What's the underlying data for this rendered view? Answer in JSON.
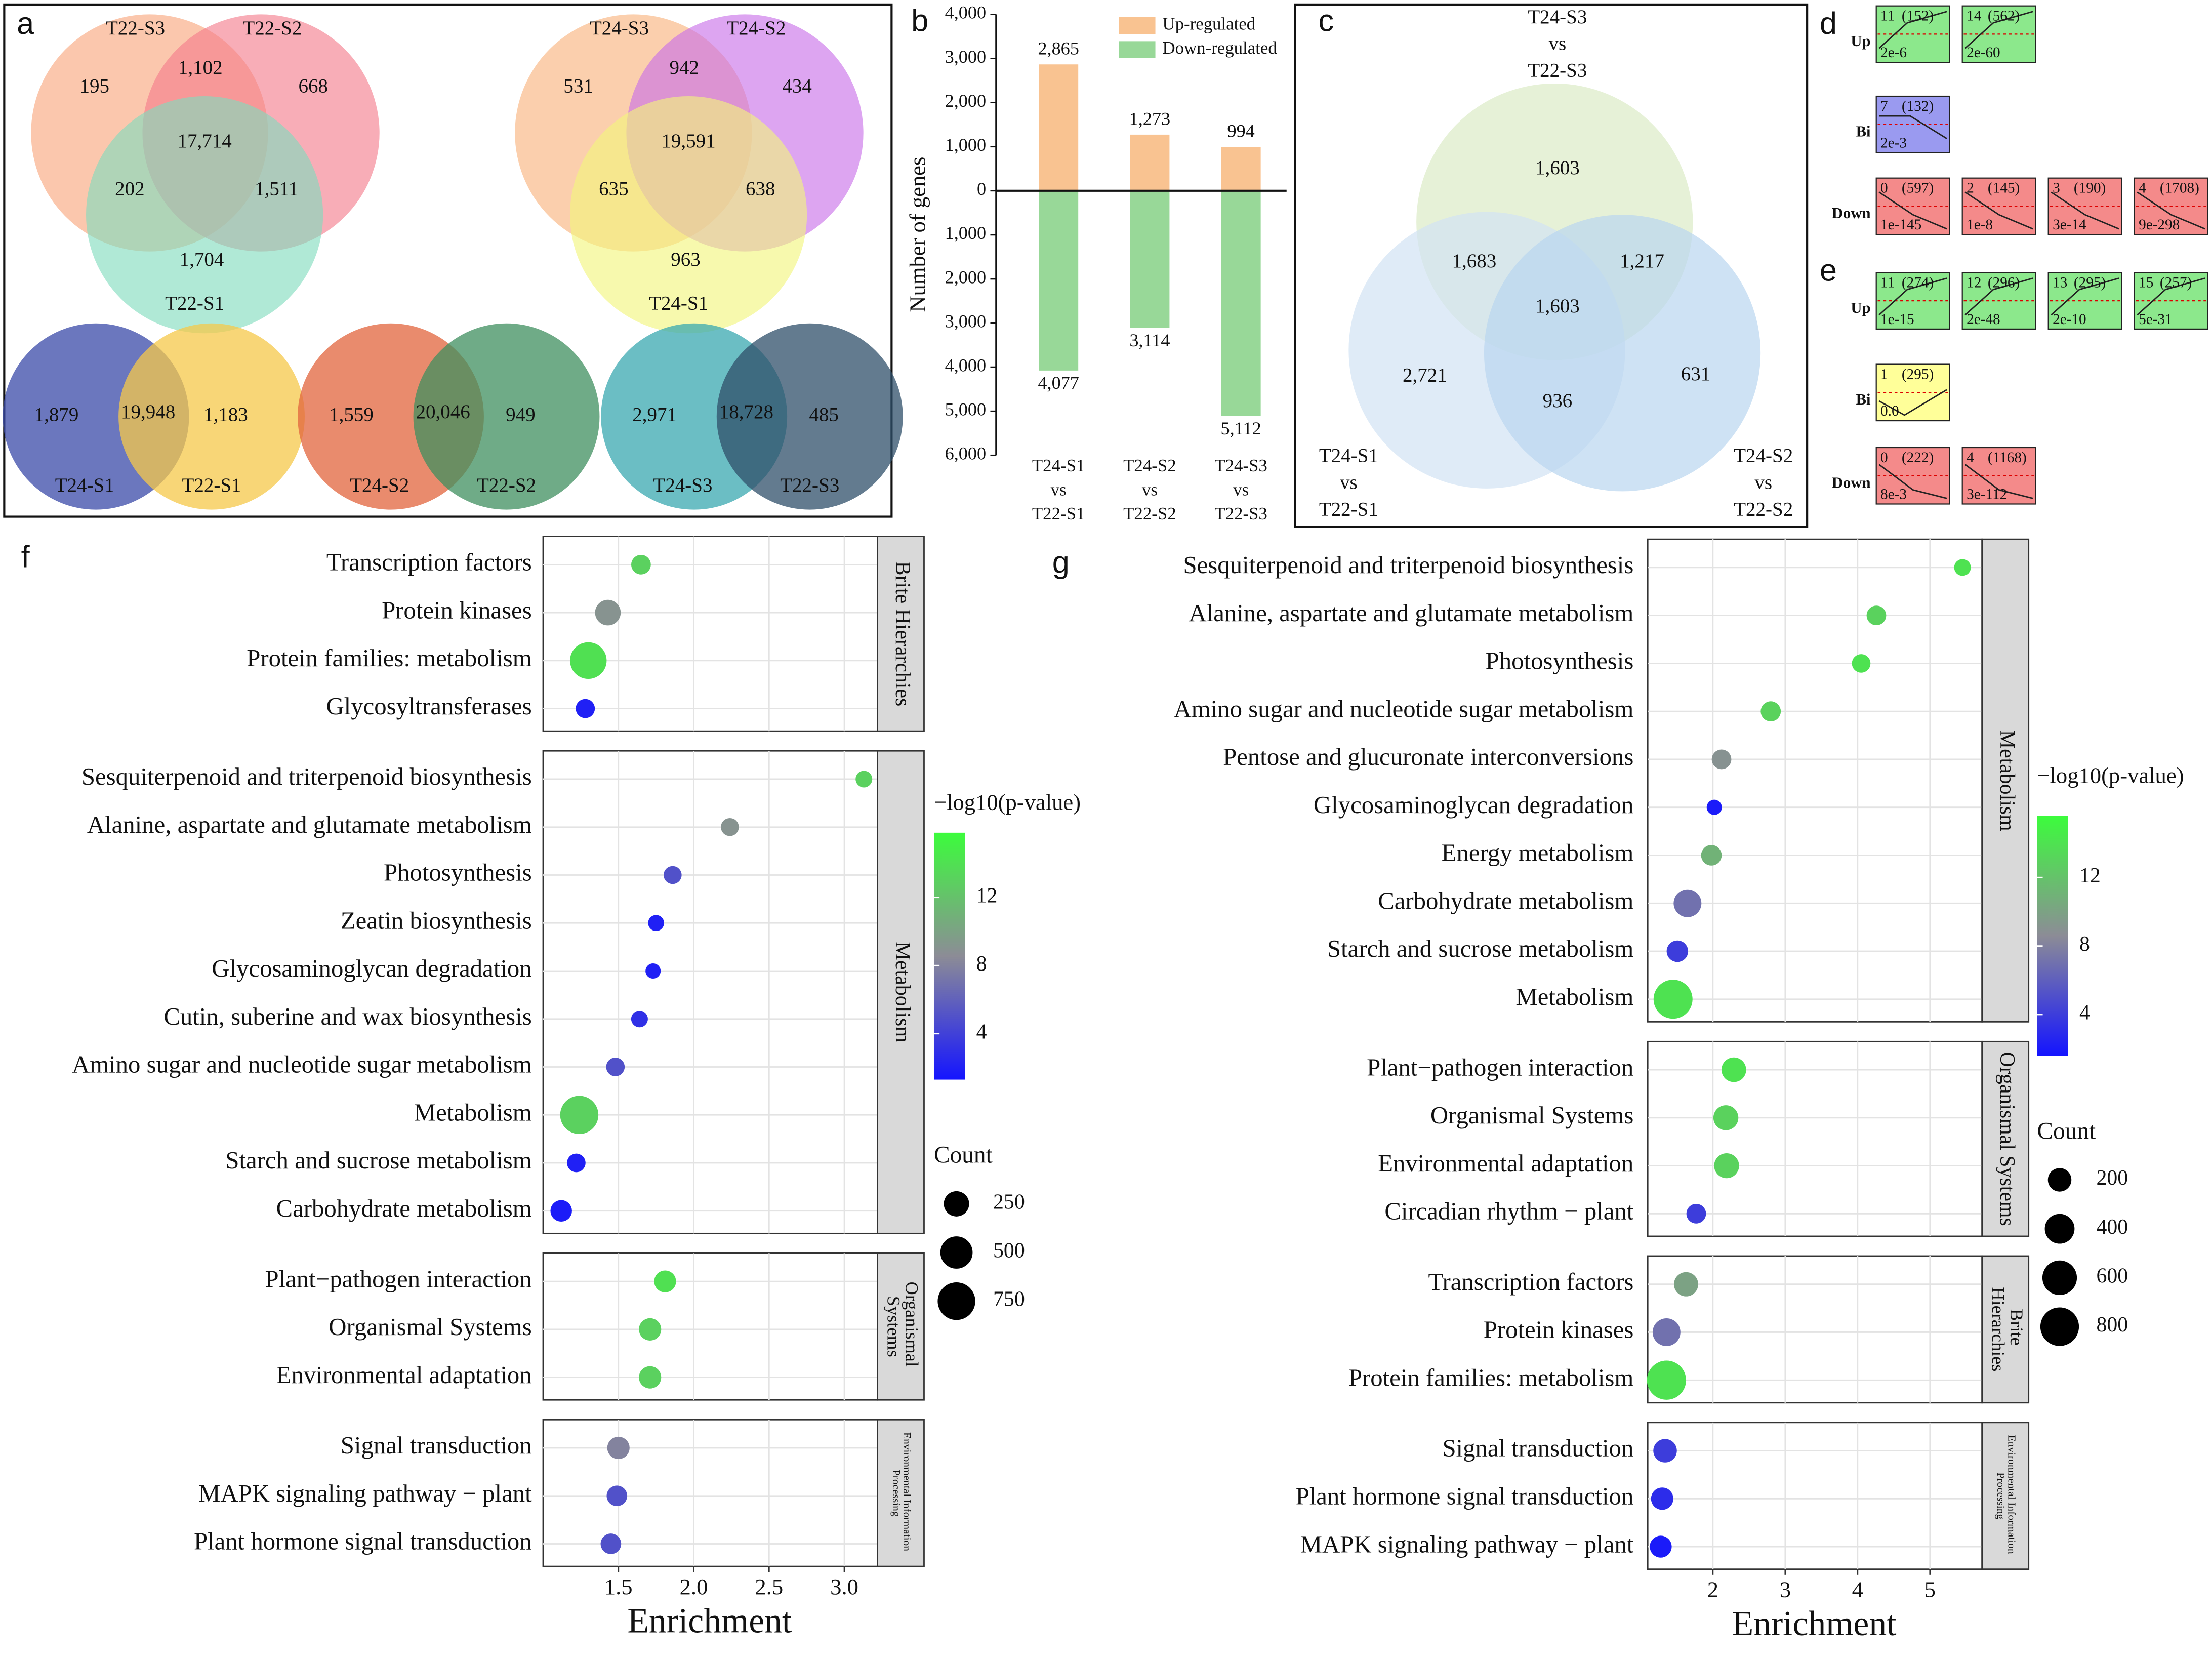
{
  "chart_data": [
    {
      "type": "venn",
      "panel": "a",
      "diagrams": [
        {
          "sets": [
            {
              "name": "T22-S3",
              "color": "#f8a57a"
            },
            {
              "name": "T22-S2",
              "color": "#f47a8a"
            },
            {
              "name": "T22-S1",
              "color": "#7fdcbd"
            }
          ],
          "values": [
            195,
            668,
            1704,
            1102,
            202,
            1511,
            17714
          ],
          "value_labels": [
            "195",
            "668",
            "1,704",
            "1,102",
            "202",
            "1,511",
            "17,714"
          ]
        },
        {
          "sets": [
            {
              "name": "T24-S3",
              "color": "#f9b27a"
            },
            {
              "name": "T24-S2",
              "color": "#c86ee8"
            },
            {
              "name": "T24-S1",
              "color": "#f2f57a"
            }
          ],
          "values": [
            531,
            434,
            963,
            942,
            635,
            638,
            19591
          ],
          "value_labels": [
            "531",
            "434",
            "963",
            "942",
            "635",
            "638",
            "19,591"
          ]
        },
        {
          "sets": [
            {
              "name": "T24-S1",
              "color": "#3a4aa8"
            },
            {
              "name": "T22-S1",
              "color": "#f5c84a"
            }
          ],
          "values": [
            1879,
            1183,
            19948
          ],
          "value_labels": [
            "1,879",
            "1,183",
            "19,948"
          ]
        },
        {
          "sets": [
            {
              "name": "T24-S2",
              "color": "#e2643c"
            },
            {
              "name": "T22-S2",
              "color": "#3f8f5f"
            }
          ],
          "values": [
            1559,
            949,
            20046
          ],
          "value_labels": [
            "1,559",
            "949",
            "20,046"
          ]
        },
        {
          "sets": [
            {
              "name": "T24-S3",
              "color": "#3aa8b0"
            },
            {
              "name": "T22-S3",
              "color": "#2f4f6a"
            }
          ],
          "values": [
            2971,
            485,
            18728
          ],
          "value_labels": [
            "2,971",
            "485",
            "18,728"
          ]
        }
      ]
    },
    {
      "type": "bar",
      "panel": "b",
      "y_label": "Number of genes",
      "categories": [
        "T24-S1\nvs\nT22-S1",
        "T24-S2\nvs\nT22-S2",
        "T24-S3\nvs\nT22-S3"
      ],
      "series": [
        {
          "name": "Up-regulated",
          "color": "#f9c391",
          "values": [
            2865,
            1273,
            994
          ],
          "value_labels": [
            "2,865",
            "1,273",
            "994"
          ]
        },
        {
          "name": "Down-regulated",
          "color": "#98d898",
          "values": [
            -4077,
            -3114,
            -5112
          ],
          "value_labels": [
            "4,077",
            "3,114",
            "5,112"
          ]
        }
      ],
      "ylim": [
        -6000,
        4000
      ],
      "yticks": [
        {
          "value": -6000,
          "label": "6,000"
        },
        {
          "value": -5000,
          "label": "5,000"
        },
        {
          "value": -4000,
          "label": "4,000"
        },
        {
          "value": -3000,
          "label": "3,000"
        },
        {
          "value": -2000,
          "label": "2,000"
        },
        {
          "value": -1000,
          "label": "1,000"
        },
        0,
        {
          "value": 1000,
          "label": "1,000"
        },
        {
          "value": 2000,
          "label": "2,000"
        },
        {
          "value": 3000,
          "label": "3,000"
        },
        {
          "value": 4000,
          "label": "4,000"
        }
      ]
    },
    {
      "type": "venn",
      "panel": "c",
      "diagrams": [
        {
          "sets": [
            {
              "name": "T24-S3\nvs\nT22-S3",
              "color": "#dcebc6"
            },
            {
              "name": "T24-S1\nvs\nT22-S1",
              "color": "#d2e2f3"
            },
            {
              "name": "T24-S2\nvs\nT22-S2",
              "color": "#b9d5f0"
            }
          ],
          "values": [
            1603,
            2721,
            631,
            1683,
            1217,
            936,
            1603
          ],
          "value_labels": [
            "1,603",
            "2,721",
            "631",
            "1,683",
            "1,217",
            "936",
            "1,603"
          ]
        }
      ]
    },
    {
      "type": "profiles",
      "panel": "d",
      "rows": [
        {
          "name": "Up",
          "color": "#8ce88c",
          "tiles": [
            {
              "id": "11",
              "size": "(152)",
              "p": "2e-6"
            },
            {
              "id": "14",
              "size": "(562)",
              "p": "2e-60"
            }
          ]
        },
        {
          "name": "Bi",
          "color": "#9a9af0",
          "tiles": [
            {
              "id": "7",
              "size": "(132)",
              "p": "2e-3"
            }
          ]
        },
        {
          "name": "Down",
          "color": "#f48a8a",
          "tiles": [
            {
              "id": "0",
              "size": "(597)",
              "p": "1e-145"
            },
            {
              "id": "2",
              "size": "(145)",
              "p": "1e-8"
            },
            {
              "id": "3",
              "size": "(190)",
              "p": "3e-14"
            },
            {
              "id": "4",
              "size": "(1708)",
              "p": "9e-298"
            }
          ]
        }
      ]
    },
    {
      "type": "profiles",
      "panel": "e",
      "rows": [
        {
          "name": "Up",
          "color": "#8ce88c",
          "tiles": [
            {
              "id": "11",
              "size": "(274)",
              "p": "1e-15"
            },
            {
              "id": "12",
              "size": "(296)",
              "p": "2e-48"
            },
            {
              "id": "13",
              "size": "(295)",
              "p": "2e-10"
            },
            {
              "id": "15",
              "size": "(257)",
              "p": "5e-31"
            }
          ]
        },
        {
          "name": "Bi",
          "color": "#ffff99",
          "tiles": [
            {
              "id": "1",
              "size": "(295)",
              "p": "0.0"
            }
          ]
        },
        {
          "name": "Down",
          "color": "#f48a8a",
          "tiles": [
            {
              "id": "0",
              "size": "(222)",
              "p": "8e-3"
            },
            {
              "id": "4",
              "size": "(1168)",
              "p": "3e-112"
            }
          ]
        }
      ]
    },
    {
      "type": "dot",
      "panel": "f",
      "x_label": "Enrichment",
      "xlim": [
        1.0,
        3.22
      ],
      "xticks": [
        1.5,
        {
          "value": 2,
          "label": "2.0"
        },
        2.5,
        {
          "value": 3,
          "label": "3.0"
        }
      ],
      "color_label": "−log10(p-value)",
      "clim": [
        1.3,
        15.8
      ],
      "cticks": [
        4,
        8,
        12
      ],
      "size_label": "Count",
      "size_ticks": [
        250,
        500,
        750
      ],
      "facets": [
        {
          "name": "Brite Hierarchies",
          "terms": [
            "Transcription factors",
            "Protein kinases",
            "Protein families: metabolism",
            "Glycosyltransferases"
          ],
          "x": [
            1.65,
            1.43,
            1.3,
            1.28
          ],
          "count": [
            110,
            260,
            700,
            100
          ],
          "color_values": [
            13,
            9,
            14,
            2
          ]
        },
        {
          "name": "Metabolism",
          "terms": [
            "Sesquiterpenoid and triterpenoid biosynthesis",
            "Alanine, aspartate and glutamate metabolism",
            "Photosynthesis",
            "Zeatin biosynthesis",
            "Glycosaminoglycan degradation",
            "Cutin, suberine and wax biosynthesis",
            "Amino sugar and nucleotide sugar metabolism",
            "Metabolism",
            "Starch and sucrose metabolism",
            "Carbohydrate metabolism"
          ],
          "x": [
            3.13,
            2.24,
            1.86,
            1.75,
            1.73,
            1.64,
            1.48,
            1.24,
            1.22,
            1.12
          ],
          "count": [
            60,
            80,
            80,
            50,
            40,
            60,
            90,
            780,
            90,
            150
          ],
          "color_values": [
            13,
            9,
            5,
            2,
            2,
            3,
            5,
            13,
            2,
            1.8
          ]
        },
        {
          "name": "Organismal Systems",
          "terms": [
            "Plant−pathogen interaction",
            "Organismal Systems",
            "Environmental adaptation"
          ],
          "x": [
            1.81,
            1.71,
            1.71
          ],
          "count": [
            160,
            170,
            170
          ],
          "color_values": [
            14,
            13,
            13
          ]
        },
        {
          "name": "Environmental Information Processing",
          "terms": [
            "Signal transduction",
            "MAPK signaling pathway − plant",
            "Plant hormone signal transduction"
          ],
          "x": [
            1.5,
            1.49,
            1.45
          ],
          "count": [
            170,
            130,
            130
          ],
          "color_values": [
            8,
            5,
            5
          ]
        }
      ]
    },
    {
      "type": "dot",
      "panel": "g",
      "x_label": "Enrichment",
      "xlim": [
        1.1,
        5.72
      ],
      "xticks": [
        2,
        3,
        4,
        5
      ],
      "color_label": "−log10(p-value)",
      "clim": [
        1.6,
        15.6
      ],
      "cticks": [
        4,
        8,
        12
      ],
      "size_label": "Count",
      "size_ticks": [
        200,
        400,
        600,
        800
      ],
      "facets": [
        {
          "name": "Metabolism",
          "terms": [
            "Sesquiterpenoid and triterpenoid biosynthesis",
            "Alanine, aspartate and glutamate metabolism",
            "Photosynthesis",
            "Amino sugar and nucleotide sugar metabolism",
            "Pentose and glucuronate interconversions",
            "Glycosaminoglycan degradation",
            "Energy metabolism",
            "Carbohydrate metabolism",
            "Starch and sucrose metabolism",
            "Metabolism"
          ],
          "x": [
            5.45,
            4.26,
            4.05,
            2.8,
            2.12,
            2.02,
            1.98,
            1.65,
            1.51,
            1.45
          ],
          "count": [
            60,
            110,
            90,
            120,
            110,
            40,
            130,
            330,
            150,
            820
          ],
          "color_values": [
            14,
            13,
            14,
            13,
            9,
            2,
            11,
            7,
            4,
            14
          ]
        },
        {
          "name": "Organismal Systems",
          "terms": [
            "Plant−pathogen interaction",
            "Organismal Systems",
            "Environmental adaptation",
            "Circadian rhythm − plant"
          ],
          "x": [
            2.29,
            2.18,
            2.19,
            1.77
          ],
          "count": [
            230,
            240,
            240,
            110
          ],
          "color_values": [
            14,
            13,
            13,
            4
          ]
        },
        {
          "name": "Brite Hierarchies",
          "terms": [
            "Transcription factors",
            "Protein kinases",
            "Protein families: metabolism"
          ],
          "x": [
            1.63,
            1.36,
            1.36
          ],
          "count": [
            220,
            330,
            830
          ],
          "color_values": [
            10,
            7,
            14
          ]
        },
        {
          "name": "Environmental Information Processing",
          "terms": [
            "Signal transduction",
            "Plant hormone signal transduction",
            "MAPK signaling pathway − plant"
          ],
          "x": [
            1.34,
            1.3,
            1.28
          ],
          "count": [
            200,
            170,
            160
          ],
          "color_values": [
            4,
            3,
            2
          ]
        }
      ]
    }
  ]
}
